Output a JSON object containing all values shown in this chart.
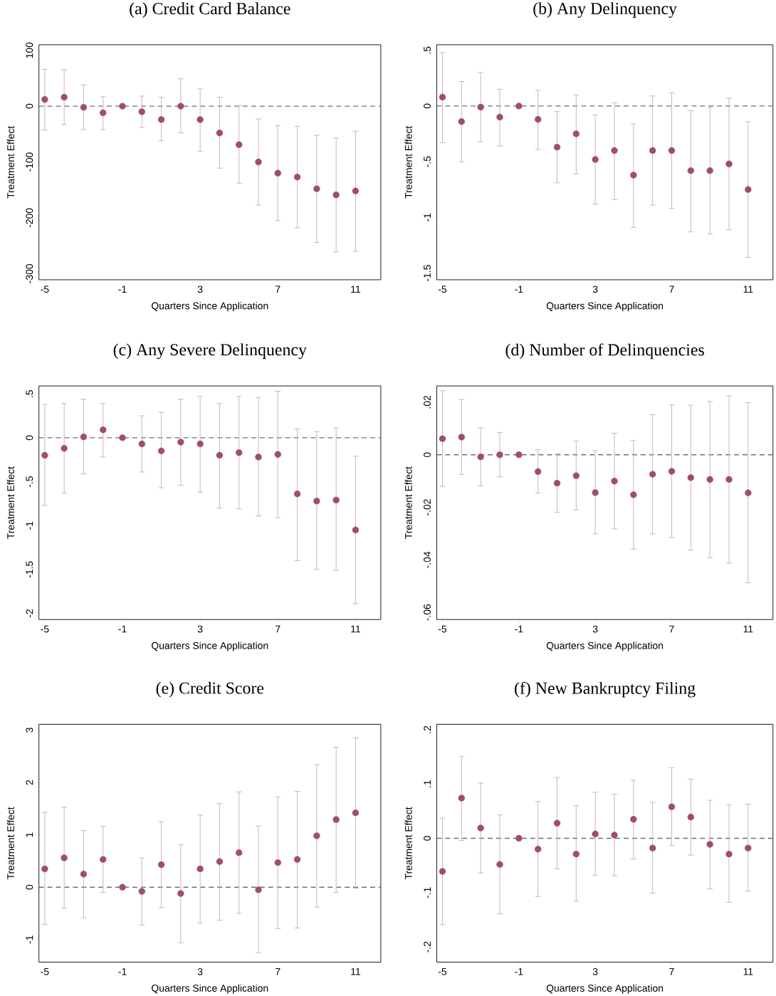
{
  "chart_data": [
    {
      "type": "scatter",
      "title": "(a) Credit Card Balance",
      "xlabel": "Quarters Since Application",
      "ylabel": "Treatment Effect",
      "x": [
        -5,
        -4,
        -3,
        -2,
        -1,
        0,
        1,
        2,
        3,
        4,
        5,
        6,
        7,
        8,
        9,
        10,
        11
      ],
      "xlim": [
        -5.3,
        12.3
      ],
      "xticks": [
        -5,
        -1,
        3,
        7,
        11
      ],
      "ylim": [
        -311,
        110
      ],
      "yticks": [
        -300,
        -200,
        -100,
        0,
        100
      ],
      "ref_lines": [
        {
          "axis": "y",
          "value": 0,
          "line_style": "dashed",
          "color": "#707070"
        }
      ],
      "series": [
        {
          "color": "#a0505c",
          "values": [
            12,
            16,
            -2,
            -12,
            0,
            -10,
            -24,
            0,
            -24,
            -48,
            -69,
            -100,
            -120,
            -127,
            -148,
            -159,
            -152
          ],
          "errors": [
            [
              -43,
              66
            ],
            [
              -33,
              65
            ],
            [
              -42,
              38
            ],
            [
              -42,
              17
            ],
            null,
            [
              -38,
              18
            ],
            [
              -62,
              16
            ],
            [
              -48,
              49
            ],
            [
              -81,
              31
            ],
            [
              -111,
              16
            ],
            [
              -138,
              1
            ],
            [
              -177,
              -23
            ],
            [
              -205,
              -35
            ],
            [
              -218,
              -36
            ],
            [
              -244,
              -52
            ],
            [
              -261,
              -57
            ],
            [
              -260,
              -45
            ]
          ]
        }
      ]
    },
    {
      "type": "scatter",
      "title": "(b) Any Delinquency",
      "xlabel": "Quarters Since Application",
      "ylabel": "Treatment Effect",
      "x": [
        -5,
        -4,
        -3,
        -2,
        -1,
        0,
        1,
        2,
        3,
        4,
        5,
        6,
        7,
        8,
        9,
        10,
        11
      ],
      "xlim": [
        -5.3,
        12.3
      ],
      "xticks": [
        -5,
        -1,
        3,
        7,
        11
      ],
      "ylim": [
        -1.56,
        0.55
      ],
      "yticks": [
        {
          "value": -1.5,
          "label": "-1.5"
        },
        -1,
        {
          "value": -0.5,
          "label": "-.5"
        },
        0,
        {
          "value": 0.5,
          "label": ".5"
        }
      ],
      "ref_lines": [
        {
          "axis": "y",
          "value": 0,
          "line_style": "dashed",
          "color": "#707070"
        }
      ],
      "series": [
        {
          "color": "#a0505c",
          "values": [
            0.08,
            -0.14,
            -0.01,
            -0.1,
            0,
            -0.12,
            -0.37,
            -0.25,
            -0.48,
            -0.4,
            -0.62,
            -0.4,
            -0.4,
            -0.58,
            -0.58,
            -0.52,
            -0.75
          ],
          "errors": [
            [
              -0.33,
              0.48
            ],
            [
              -0.5,
              0.22
            ],
            [
              -0.32,
              0.3
            ],
            [
              -0.36,
              0.15
            ],
            null,
            [
              -0.39,
              0.14
            ],
            [
              -0.69,
              -0.05
            ],
            [
              -0.61,
              0.1
            ],
            [
              -0.88,
              -0.08
            ],
            [
              -0.84,
              0.03
            ],
            [
              -1.09,
              -0.16
            ],
            [
              -0.89,
              0.09
            ],
            [
              -0.92,
              0.12
            ],
            [
              -1.13,
              -0.04
            ],
            [
              -1.15,
              -0.01
            ],
            [
              -1.11,
              0.07
            ],
            [
              -1.36,
              -0.14
            ]
          ]
        }
      ]
    },
    {
      "type": "scatter",
      "title": "(c) Any Severe Delinquency",
      "xlabel": "Quarters Since Application",
      "ylabel": "Treatment Effect",
      "x": [
        -5,
        -4,
        -3,
        -2,
        -1,
        0,
        1,
        2,
        3,
        4,
        5,
        6,
        7,
        8,
        9,
        10,
        11
      ],
      "xlim": [
        -5.3,
        12.3
      ],
      "xticks": [
        -5,
        -1,
        3,
        7,
        11
      ],
      "ylim": [
        -2.07,
        0.59
      ],
      "yticks": [
        -2,
        {
          "value": -1.5,
          "label": "-1.5"
        },
        -1,
        {
          "value": -0.5,
          "label": "-.5"
        },
        0,
        {
          "value": 0.5,
          "label": ".5"
        }
      ],
      "ref_lines": [
        {
          "axis": "y",
          "value": 0,
          "line_style": "dashed",
          "color": "#707070"
        }
      ],
      "series": [
        {
          "color": "#a0505c",
          "values": [
            -0.2,
            -0.12,
            0.01,
            0.09,
            0,
            -0.07,
            -0.15,
            -0.05,
            -0.07,
            -0.2,
            -0.17,
            -0.22,
            -0.19,
            -0.64,
            -0.72,
            -0.71,
            -1.05
          ],
          "errors": [
            [
              -0.77,
              0.38
            ],
            [
              -0.63,
              0.39
            ],
            [
              -0.41,
              0.44
            ],
            [
              -0.22,
              0.39
            ],
            null,
            [
              -0.39,
              0.25
            ],
            [
              -0.57,
              0.29
            ],
            [
              -0.54,
              0.44
            ],
            [
              -0.62,
              0.47
            ],
            [
              -0.8,
              0.39
            ],
            [
              -0.81,
              0.47
            ],
            [
              -0.89,
              0.46
            ],
            [
              -0.91,
              0.53
            ],
            [
              -1.4,
              0.1
            ],
            [
              -1.5,
              0.07
            ],
            [
              -1.51,
              0.11
            ],
            [
              -1.89,
              -0.21
            ]
          ]
        }
      ]
    },
    {
      "type": "scatter",
      "title": "(d) Number of Delinquencies",
      "xlabel": "Quarters Since Application",
      "ylabel": "Treatment Effect",
      "x": [
        -5,
        -4,
        -3,
        -2,
        -1,
        0,
        1,
        2,
        3,
        4,
        5,
        6,
        7,
        8,
        9,
        10,
        11
      ],
      "xlim": [
        -5.3,
        12.3
      ],
      "xticks": [
        -5,
        -1,
        3,
        7,
        11
      ],
      "ylim": [
        -0.0627,
        0.0262
      ],
      "yticks": [
        {
          "value": -0.06,
          "label": "-.06"
        },
        {
          "value": -0.04,
          "label": "-.04"
        },
        {
          "value": -0.02,
          "label": "-.02"
        },
        0,
        {
          "value": 0.02,
          "label": ".02"
        }
      ],
      "ref_lines": [
        {
          "axis": "y",
          "value": 0,
          "line_style": "dashed",
          "color": "#707070"
        }
      ],
      "series": [
        {
          "color": "#a0505c",
          "values": [
            0.0061,
            0.0067,
            -0.0008,
            0.0,
            0,
            -0.0064,
            -0.0108,
            -0.008,
            -0.0144,
            -0.01,
            -0.0152,
            -0.0074,
            -0.0063,
            -0.0087,
            -0.0094,
            -0.0094,
            -0.0145
          ],
          "errors": [
            [
              -0.012,
              0.0244
            ],
            [
              -0.0075,
              0.021
            ],
            [
              -0.0119,
              0.0102
            ],
            [
              -0.0084,
              0.0085
            ],
            null,
            [
              -0.0146,
              0.0019
            ],
            [
              -0.0219,
              0.0003
            ],
            [
              -0.021,
              0.0052
            ],
            [
              -0.0301,
              0.0015
            ],
            [
              -0.0282,
              0.0082
            ],
            [
              -0.0359,
              0.0054
            ],
            [
              -0.0301,
              0.0153
            ],
            [
              -0.0315,
              0.019
            ],
            [
              -0.0363,
              0.0189
            ],
            [
              -0.0392,
              0.0203
            ],
            [
              -0.0412,
              0.0224
            ],
            [
              -0.0487,
              0.0198
            ]
          ]
        }
      ]
    },
    {
      "type": "scatter",
      "title": "(e) Credit Score",
      "xlabel": "Quarters Since Application",
      "ylabel": "Treatment Effect",
      "x": [
        -5,
        -4,
        -3,
        -2,
        -1,
        0,
        1,
        2,
        3,
        4,
        5,
        6,
        7,
        8,
        9,
        10,
        11
      ],
      "xlim": [
        -5.3,
        12.3
      ],
      "xticks": [
        -5,
        -1,
        3,
        7,
        11
      ],
      "ylim": [
        -1.43,
        3.11
      ],
      "yticks": [
        -1,
        0,
        1,
        2,
        3
      ],
      "ref_lines": [
        {
          "axis": "y",
          "value": 0,
          "line_style": "dashed",
          "color": "#707070"
        }
      ],
      "series": [
        {
          "color": "#a0505c",
          "values": [
            0.35,
            0.56,
            0.25,
            0.53,
            0,
            -0.08,
            0.43,
            -0.12,
            0.35,
            0.49,
            0.66,
            -0.05,
            0.47,
            0.53,
            0.98,
            1.29,
            1.42
          ],
          "errors": [
            [
              -0.71,
              1.43
            ],
            [
              -0.4,
              1.53
            ],
            [
              -0.58,
              1.08
            ],
            [
              -0.1,
              1.16
            ],
            null,
            [
              -0.72,
              0.56
            ],
            [
              -0.39,
              1.25
            ],
            [
              -1.06,
              0.81
            ],
            [
              -0.68,
              1.38
            ],
            [
              -0.63,
              1.6
            ],
            [
              -0.5,
              1.82
            ],
            [
              -1.25,
              1.17
            ],
            [
              -0.79,
              1.72
            ],
            [
              -0.78,
              1.83
            ],
            [
              -0.38,
              2.34
            ],
            [
              -0.1,
              2.67
            ],
            [
              -0.02,
              2.85
            ]
          ]
        }
      ]
    },
    {
      "type": "scatter",
      "title": "(f) New Bankruptcy Filing",
      "xlabel": "Quarters Since Application",
      "ylabel": "Treatment Effect",
      "x": [
        -5,
        -4,
        -3,
        -2,
        -1,
        0,
        1,
        2,
        3,
        4,
        5,
        6,
        7,
        8,
        9,
        10,
        11
      ],
      "xlim": [
        -5.3,
        12.3
      ],
      "xticks": [
        -5,
        -1,
        3,
        7,
        11
      ],
      "ylim": [
        -0.228,
        0.21
      ],
      "yticks": [
        {
          "value": -0.2,
          "label": "-.2"
        },
        {
          "value": -0.1,
          "label": "-.1"
        },
        0,
        {
          "value": 0.1,
          "label": ".1"
        },
        {
          "value": 0.2,
          "label": ".2"
        }
      ],
      "ref_lines": [
        {
          "axis": "y",
          "value": 0,
          "line_style": "dashed",
          "color": "#707070"
        }
      ],
      "series": [
        {
          "color": "#a0505c",
          "values": [
            -0.061,
            0.074,
            0.019,
            -0.048,
            0,
            -0.02,
            0.028,
            -0.029,
            0.008,
            0.006,
            0.035,
            -0.018,
            0.058,
            0.039,
            -0.011,
            -0.029,
            -0.018
          ],
          "errors": [
            [
              -0.159,
              0.037
            ],
            [
              -0.004,
              0.151
            ],
            [
              -0.064,
              0.102
            ],
            [
              -0.139,
              0.043
            ],
            null,
            [
              -0.107,
              0.068
            ],
            [
              -0.056,
              0.112
            ],
            [
              -0.116,
              0.06
            ],
            [
              -0.068,
              0.085
            ],
            [
              -0.069,
              0.081
            ],
            [
              -0.038,
              0.107
            ],
            [
              -0.101,
              0.066
            ],
            [
              -0.013,
              0.13
            ],
            [
              -0.031,
              0.109
            ],
            [
              -0.093,
              0.07
            ],
            [
              -0.118,
              0.062
            ],
            [
              -0.097,
              0.063
            ]
          ]
        }
      ]
    }
  ]
}
